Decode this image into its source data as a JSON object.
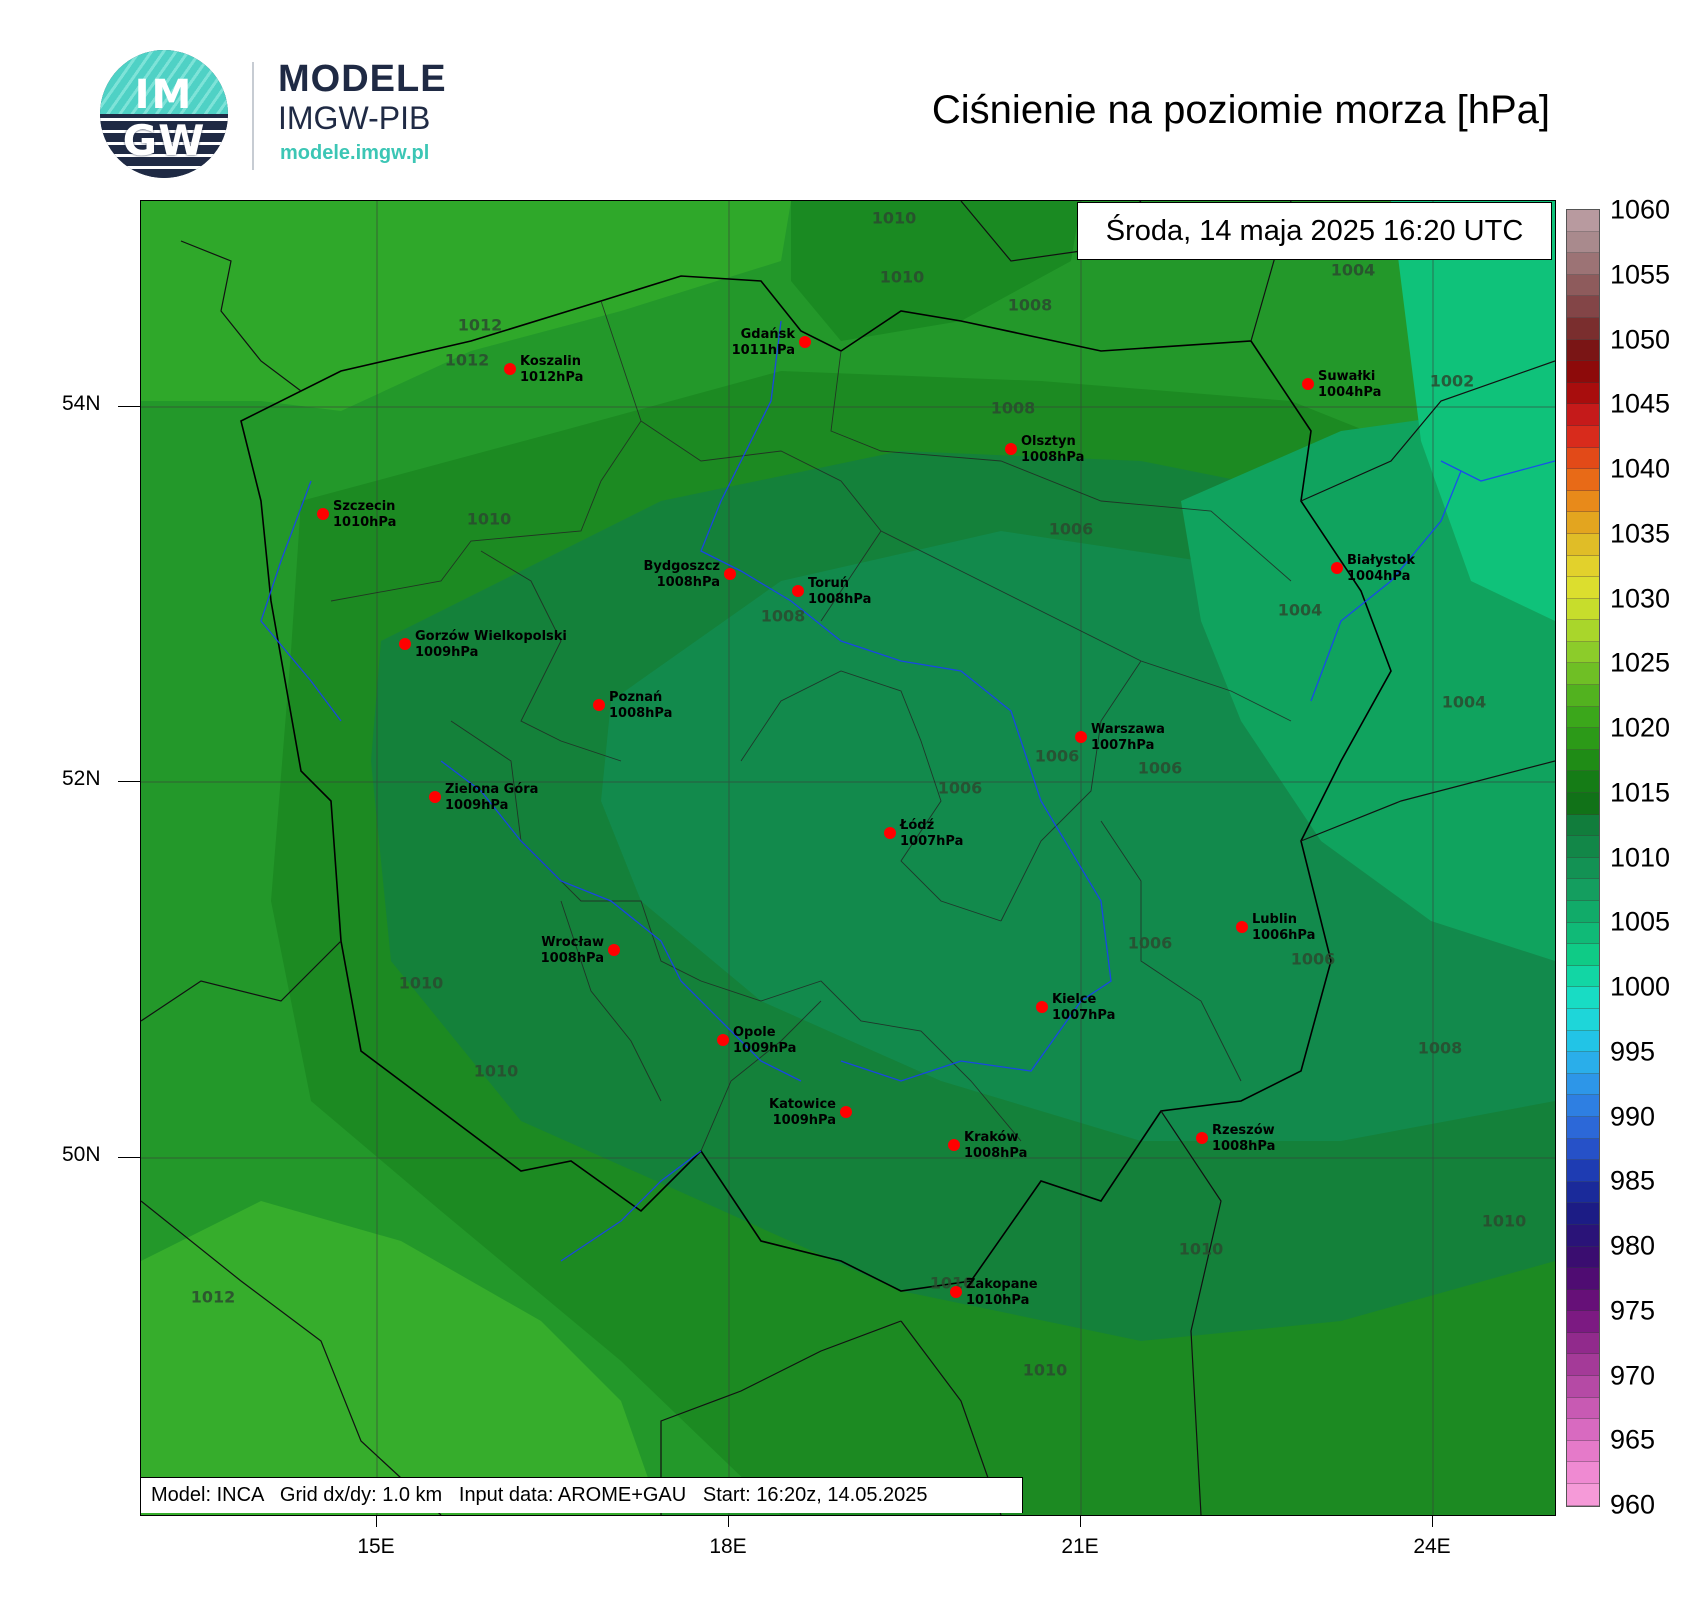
{
  "header": {
    "logo_line1": "IM",
    "logo_line2": "GW",
    "brand_title": "MODELE",
    "brand_subtitle": "IMGW-PIB",
    "brand_url": "modele.imgw.pl",
    "map_title": "Ciśnienie na poziomie morza [hPa]"
  },
  "date_label": "Środa, 14 maja 2025 16:20 UTC",
  "info_label": "Model: INCA   Grid dx/dy: 1.0 km   Input data: AROME+GAU   Start: 16:20z, 14.05.2025",
  "axes": {
    "lat_labels": [
      "54N",
      "52N",
      "50N"
    ],
    "lon_labels": [
      "15E",
      "18E",
      "21E",
      "24E"
    ]
  },
  "cities": [
    {
      "name": "Gdańsk",
      "value": "1011hPa"
    },
    {
      "name": "Koszalin",
      "value": "1012hPa"
    },
    {
      "name": "Suwałki",
      "value": "1004hPa"
    },
    {
      "name": "Olsztyn",
      "value": "1008hPa"
    },
    {
      "name": "Szczecin",
      "value": "1010hPa"
    },
    {
      "name": "Białystok",
      "value": "1004hPa"
    },
    {
      "name": "Bydgoszcz",
      "value": "1008hPa"
    },
    {
      "name": "Toruń",
      "value": "1008hPa"
    },
    {
      "name": "Gorzów Wielkopolski",
      "value": "1009hPa"
    },
    {
      "name": "Poznań",
      "value": "1008hPa"
    },
    {
      "name": "Warszawa",
      "value": "1007hPa"
    },
    {
      "name": "Zielona Góra",
      "value": "1009hPa"
    },
    {
      "name": "Łódź",
      "value": "1007hPa"
    },
    {
      "name": "Lublin",
      "value": "1006hPa"
    },
    {
      "name": "Wrocław",
      "value": "1008hPa"
    },
    {
      "name": "Kielce",
      "value": "1007hPa"
    },
    {
      "name": "Opole",
      "value": "1009hPa"
    },
    {
      "name": "Katowice",
      "value": "1009hPa"
    },
    {
      "name": "Kraków",
      "value": "1008hPa"
    },
    {
      "name": "Rzeszów",
      "value": "1008hPa"
    },
    {
      "name": "Zakopane",
      "value": "1010hPa"
    }
  ],
  "isobar_labels": [
    "1010",
    "1010",
    "1008",
    "1004",
    "1012",
    "1012",
    "1002",
    "1008",
    "1010",
    "1006",
    "1004",
    "1008",
    "1004",
    "1006",
    "1006",
    "1006",
    "1006",
    "1006",
    "1010",
    "1008",
    "1010",
    "1010",
    "1010",
    "1012",
    "1010",
    "1010"
  ],
  "colorbar": {
    "labels": [
      "1060",
      "1055",
      "1050",
      "1045",
      "1040",
      "1035",
      "1030",
      "1025",
      "1020",
      "1015",
      "1010",
      "1005",
      "1000",
      "995",
      "990",
      "985",
      "980",
      "975",
      "970",
      "965",
      "960"
    ],
    "colors": [
      "#b89a9f",
      "#a98a8d",
      "#9c7375",
      "#8e5b5c",
      "#834547",
      "#7a2e2e",
      "#7a1515",
      "#8d0a0a",
      "#a80d0d",
      "#c51a1a",
      "#d82b1c",
      "#e24a18",
      "#e86a17",
      "#e88a1a",
      "#e3a51f",
      "#e0bd27",
      "#e2d12c",
      "#dcde2e",
      "#c7dd2c",
      "#a9d62b",
      "#8ccc2a",
      "#6fbf25",
      "#52b21f",
      "#3ba71b",
      "#2c9a18",
      "#1f8c16",
      "#157c16",
      "#117218",
      "#117d3c",
      "#128748",
      "#139254",
      "#149e5f",
      "#11ab69",
      "#10ba77",
      "#0fcb86",
      "#12d6a4",
      "#18dcc4",
      "#1ed6d9",
      "#22c4e6",
      "#2aaeea",
      "#2d96e8",
      "#2e7fe2",
      "#2c68d8",
      "#2651c8",
      "#1e3cb3",
      "#1a2a9a",
      "#1c1c85",
      "#2a1378",
      "#3a0d70",
      "#4f0c72",
      "#661078",
      "#7c1a82",
      "#912a8c",
      "#a43a98",
      "#b54aa5",
      "#c85ab3",
      "#d86ac0",
      "#e57ac9",
      "#ef8ad2",
      "#f59ad8"
    ]
  }
}
